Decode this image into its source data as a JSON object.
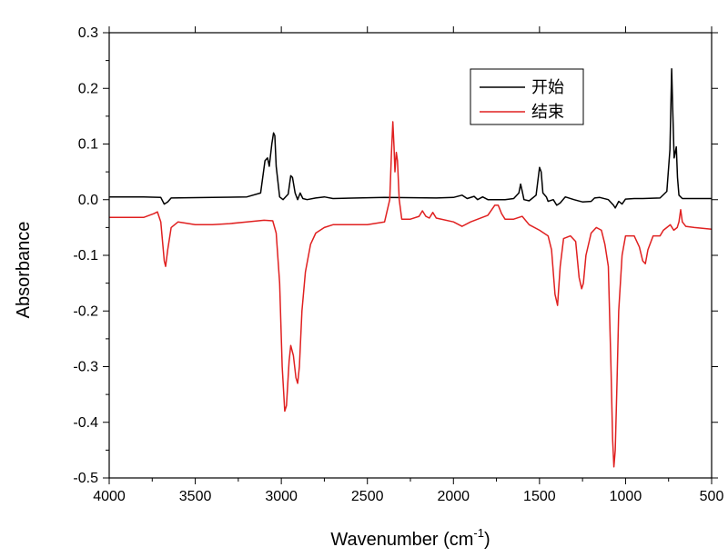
{
  "chart_data": {
    "type": "line",
    "title": "",
    "xlabel": "Wavenumber (cm",
    "xlabel_superscript": "-1",
    "xlabel_close": ")",
    "ylabel": "Absorbance",
    "xlim": [
      4000,
      500
    ],
    "ylim": [
      -0.5,
      0.3
    ],
    "x_ticks": [
      4000,
      3500,
      3000,
      2500,
      2000,
      1500,
      1000,
      500
    ],
    "x_tick_labels": [
      "4000",
      "3500",
      "3000",
      "2500",
      "2000",
      "1500",
      "1000",
      "500"
    ],
    "y_ticks": [
      0.3,
      0.2,
      0.1,
      0.0,
      -0.1,
      -0.2,
      -0.3,
      -0.4,
      -0.5
    ],
    "y_tick_labels": [
      "0.3",
      "0.2",
      "0.1",
      "0.0",
      "-0.1",
      "-0.2",
      "-0.3",
      "-0.4",
      "-0.5"
    ],
    "grid": false,
    "legend_position": "top-right",
    "series": [
      {
        "name": "开始",
        "color": "#000000",
        "points": [
          [
            4000,
            0.005
          ],
          [
            3800,
            0.005
          ],
          [
            3700,
            0.004
          ],
          [
            3680,
            -0.008
          ],
          [
            3660,
            -0.004
          ],
          [
            3640,
            0.003
          ],
          [
            3400,
            0.004
          ],
          [
            3200,
            0.005
          ],
          [
            3120,
            0.012
          ],
          [
            3095,
            0.07
          ],
          [
            3080,
            0.075
          ],
          [
            3070,
            0.06
          ],
          [
            3055,
            0.1
          ],
          [
            3045,
            0.12
          ],
          [
            3038,
            0.115
          ],
          [
            3030,
            0.06
          ],
          [
            3010,
            0.005
          ],
          [
            2990,
            0.0
          ],
          [
            2960,
            0.01
          ],
          [
            2945,
            0.043
          ],
          [
            2935,
            0.04
          ],
          [
            2920,
            0.012
          ],
          [
            2905,
            0.0
          ],
          [
            2890,
            0.012
          ],
          [
            2875,
            0.002
          ],
          [
            2850,
            0.0
          ],
          [
            2800,
            0.003
          ],
          [
            2750,
            0.005
          ],
          [
            2700,
            0.002
          ],
          [
            2400,
            0.004
          ],
          [
            2100,
            0.003
          ],
          [
            2000,
            0.004
          ],
          [
            1950,
            0.008
          ],
          [
            1920,
            0.002
          ],
          [
            1880,
            0.006
          ],
          [
            1860,
            0.0
          ],
          [
            1830,
            0.005
          ],
          [
            1800,
            0.0
          ],
          [
            1700,
            0.0
          ],
          [
            1650,
            0.002
          ],
          [
            1620,
            0.012
          ],
          [
            1610,
            0.028
          ],
          [
            1600,
            0.015
          ],
          [
            1590,
            0.0
          ],
          [
            1560,
            -0.002
          ],
          [
            1520,
            0.008
          ],
          [
            1500,
            0.058
          ],
          [
            1490,
            0.05
          ],
          [
            1480,
            0.012
          ],
          [
            1460,
            0.005
          ],
          [
            1450,
            -0.003
          ],
          [
            1420,
            0.0
          ],
          [
            1400,
            -0.01
          ],
          [
            1380,
            -0.006
          ],
          [
            1350,
            0.005
          ],
          [
            1300,
            0.0
          ],
          [
            1250,
            -0.004
          ],
          [
            1200,
            -0.003
          ],
          [
            1180,
            0.003
          ],
          [
            1150,
            0.004
          ],
          [
            1100,
            0.0
          ],
          [
            1070,
            -0.01
          ],
          [
            1060,
            -0.015
          ],
          [
            1040,
            -0.003
          ],
          [
            1020,
            -0.008
          ],
          [
            1000,
            0.001
          ],
          [
            950,
            0.002
          ],
          [
            900,
            0.002
          ],
          [
            800,
            0.003
          ],
          [
            760,
            0.015
          ],
          [
            742,
            0.09
          ],
          [
            732,
            0.235
          ],
          [
            726,
            0.16
          ],
          [
            718,
            0.075
          ],
          [
            705,
            0.095
          ],
          [
            698,
            0.04
          ],
          [
            690,
            0.008
          ],
          [
            670,
            0.002
          ],
          [
            600,
            0.002
          ],
          [
            500,
            0.002
          ]
        ]
      },
      {
        "name": "结束",
        "color": "#e02020",
        "points": [
          [
            4000,
            -0.032
          ],
          [
            3800,
            -0.032
          ],
          [
            3740,
            -0.025
          ],
          [
            3720,
            -0.022
          ],
          [
            3700,
            -0.04
          ],
          [
            3680,
            -0.11
          ],
          [
            3672,
            -0.12
          ],
          [
            3660,
            -0.09
          ],
          [
            3640,
            -0.05
          ],
          [
            3600,
            -0.04
          ],
          [
            3500,
            -0.045
          ],
          [
            3400,
            -0.045
          ],
          [
            3300,
            -0.043
          ],
          [
            3200,
            -0.04
          ],
          [
            3100,
            -0.037
          ],
          [
            3050,
            -0.038
          ],
          [
            3030,
            -0.06
          ],
          [
            3010,
            -0.15
          ],
          [
            2995,
            -0.3
          ],
          [
            2980,
            -0.38
          ],
          [
            2970,
            -0.37
          ],
          [
            2955,
            -0.29
          ],
          [
            2945,
            -0.262
          ],
          [
            2930,
            -0.28
          ],
          [
            2915,
            -0.32
          ],
          [
            2905,
            -0.33
          ],
          [
            2895,
            -0.3
          ],
          [
            2880,
            -0.2
          ],
          [
            2860,
            -0.13
          ],
          [
            2830,
            -0.08
          ],
          [
            2800,
            -0.06
          ],
          [
            2750,
            -0.05
          ],
          [
            2700,
            -0.045
          ],
          [
            2600,
            -0.045
          ],
          [
            2500,
            -0.045
          ],
          [
            2400,
            -0.04
          ],
          [
            2370,
            0.0
          ],
          [
            2360,
            0.085
          ],
          [
            2352,
            0.14
          ],
          [
            2345,
            0.095
          ],
          [
            2340,
            0.05
          ],
          [
            2332,
            0.085
          ],
          [
            2325,
            0.07
          ],
          [
            2315,
            0.0
          ],
          [
            2300,
            -0.035
          ],
          [
            2250,
            -0.035
          ],
          [
            2200,
            -0.03
          ],
          [
            2180,
            -0.02
          ],
          [
            2160,
            -0.03
          ],
          [
            2140,
            -0.033
          ],
          [
            2120,
            -0.023
          ],
          [
            2100,
            -0.033
          ],
          [
            2000,
            -0.04
          ],
          [
            1950,
            -0.048
          ],
          [
            1900,
            -0.04
          ],
          [
            1800,
            -0.028
          ],
          [
            1760,
            -0.01
          ],
          [
            1740,
            -0.01
          ],
          [
            1720,
            -0.025
          ],
          [
            1700,
            -0.035
          ],
          [
            1650,
            -0.035
          ],
          [
            1600,
            -0.03
          ],
          [
            1560,
            -0.045
          ],
          [
            1500,
            -0.055
          ],
          [
            1450,
            -0.065
          ],
          [
            1430,
            -0.09
          ],
          [
            1410,
            -0.17
          ],
          [
            1395,
            -0.19
          ],
          [
            1380,
            -0.12
          ],
          [
            1360,
            -0.07
          ],
          [
            1320,
            -0.065
          ],
          [
            1290,
            -0.075
          ],
          [
            1270,
            -0.14
          ],
          [
            1255,
            -0.16
          ],
          [
            1245,
            -0.15
          ],
          [
            1230,
            -0.1
          ],
          [
            1200,
            -0.06
          ],
          [
            1170,
            -0.05
          ],
          [
            1140,
            -0.055
          ],
          [
            1120,
            -0.08
          ],
          [
            1100,
            -0.12
          ],
          [
            1085,
            -0.3
          ],
          [
            1075,
            -0.43
          ],
          [
            1068,
            -0.48
          ],
          [
            1060,
            -0.45
          ],
          [
            1050,
            -0.33
          ],
          [
            1040,
            -0.2
          ],
          [
            1020,
            -0.1
          ],
          [
            1000,
            -0.065
          ],
          [
            950,
            -0.065
          ],
          [
            920,
            -0.085
          ],
          [
            900,
            -0.11
          ],
          [
            885,
            -0.115
          ],
          [
            870,
            -0.09
          ],
          [
            840,
            -0.065
          ],
          [
            800,
            -0.065
          ],
          [
            780,
            -0.055
          ],
          [
            760,
            -0.05
          ],
          [
            740,
            -0.045
          ],
          [
            720,
            -0.055
          ],
          [
            700,
            -0.05
          ],
          [
            690,
            -0.04
          ],
          [
            680,
            -0.018
          ],
          [
            670,
            -0.04
          ],
          [
            650,
            -0.048
          ],
          [
            600,
            -0.05
          ],
          [
            500,
            -0.053
          ]
        ]
      }
    ]
  }
}
